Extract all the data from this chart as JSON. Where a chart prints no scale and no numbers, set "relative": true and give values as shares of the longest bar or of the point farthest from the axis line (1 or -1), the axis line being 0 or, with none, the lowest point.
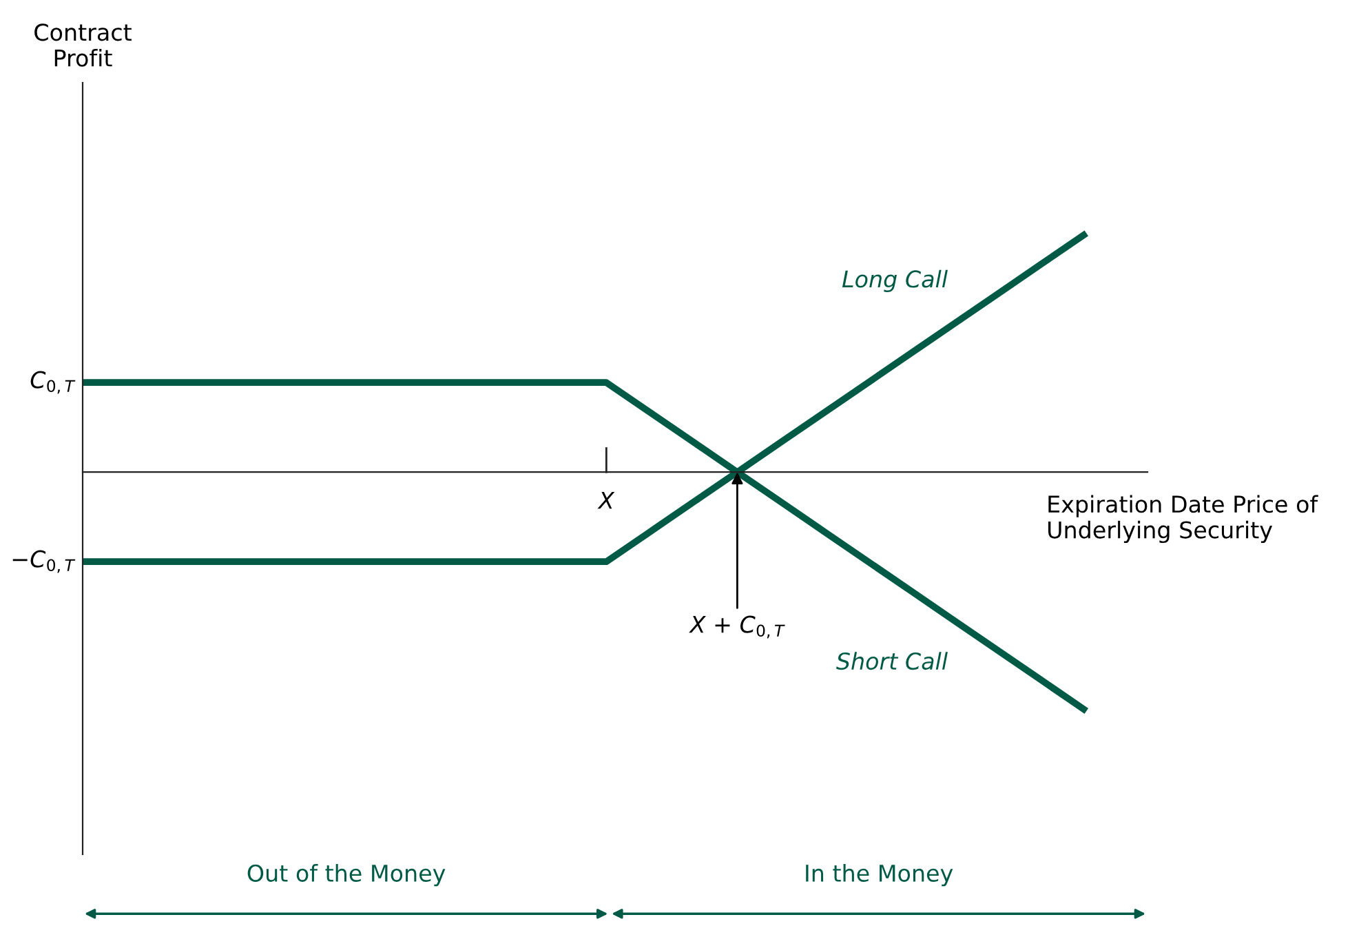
{
  "chart_data": {
    "type": "line",
    "relative": true,
    "xlabel": "Expiration Date Price of\nUnderlying Security",
    "categories": [
      null,
      null,
      null,
      null,
      null,
      null,
      null,
      null,
      null,
      null,
      null,
      null,
      "X",
      null,
      null,
      "X + C$_{0,T}$",
      null,
      null,
      null,
      null,
      null,
      null,
      null,
      null
    ],
    "series": [
      {
        "name": "Long Call",
        "color": "#005a46",
        "values": [
          -0.375,
          -0.375,
          -0.375,
          -0.375,
          -0.375,
          -0.375,
          -0.375,
          -0.375,
          -0.375,
          -0.375,
          -0.375,
          -0.375,
          -0.375,
          -0.25,
          -0.125,
          0,
          0.125,
          0.25,
          0.375,
          0.5,
          0.625,
          0.75,
          0.875,
          1
        ]
      },
      {
        "name": "Short Call",
        "color": "#005a46",
        "values": [
          0.375,
          0.375,
          0.375,
          0.375,
          0.375,
          0.375,
          0.375,
          0.375,
          0.375,
          0.375,
          0.375,
          0.375,
          0.375,
          0.25,
          0.125,
          0,
          -0.125,
          -0.25,
          -0.375,
          -0.5,
          -0.625,
          -0.75,
          -0.875,
          -1
        ]
      }
    ],
    "annotations": [
      "Contract\nProfit",
      "C$_{0,T}$",
      "−C$_{0,T}$",
      "Out of the Money",
      "In the Money"
    ],
    "line_style": "solid"
  }
}
